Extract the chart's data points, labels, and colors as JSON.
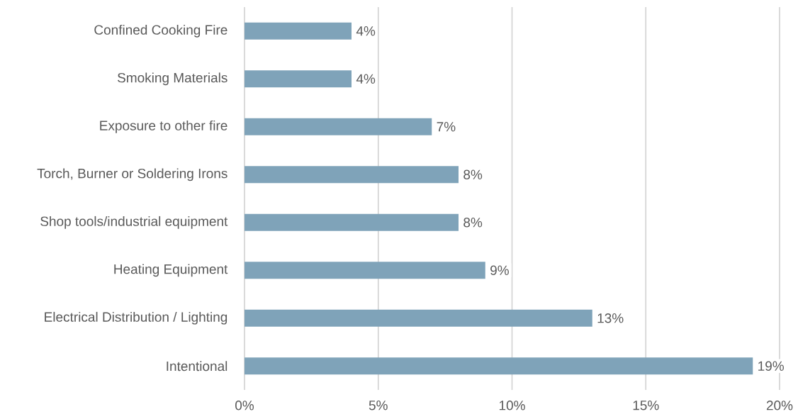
{
  "chart_data": {
    "type": "bar",
    "orientation": "horizontal",
    "categories": [
      "Confined Cooking Fire",
      "Smoking Materials",
      "Exposure to other fire",
      "Torch, Burner or Soldering Irons",
      "Shop tools/industrial equipment",
      "Heating Equipment",
      "Electrical Distribution / Lighting",
      "Intentional"
    ],
    "values": [
      4,
      4,
      7,
      8,
      8,
      9,
      13,
      19
    ],
    "value_labels": [
      "4%",
      "4%",
      "7%",
      "8%",
      "8%",
      "9%",
      "13%",
      "19%"
    ],
    "color": "#7fa3b9",
    "xlim": [
      0,
      20
    ],
    "xticks": [
      {
        "value": 0,
        "label": "0%"
      },
      {
        "value": 5,
        "label": "5%"
      },
      {
        "value": 10,
        "label": "10%"
      },
      {
        "value": 15,
        "label": "15%"
      },
      {
        "value": 20,
        "label": "20%"
      }
    ],
    "grid": "x"
  }
}
